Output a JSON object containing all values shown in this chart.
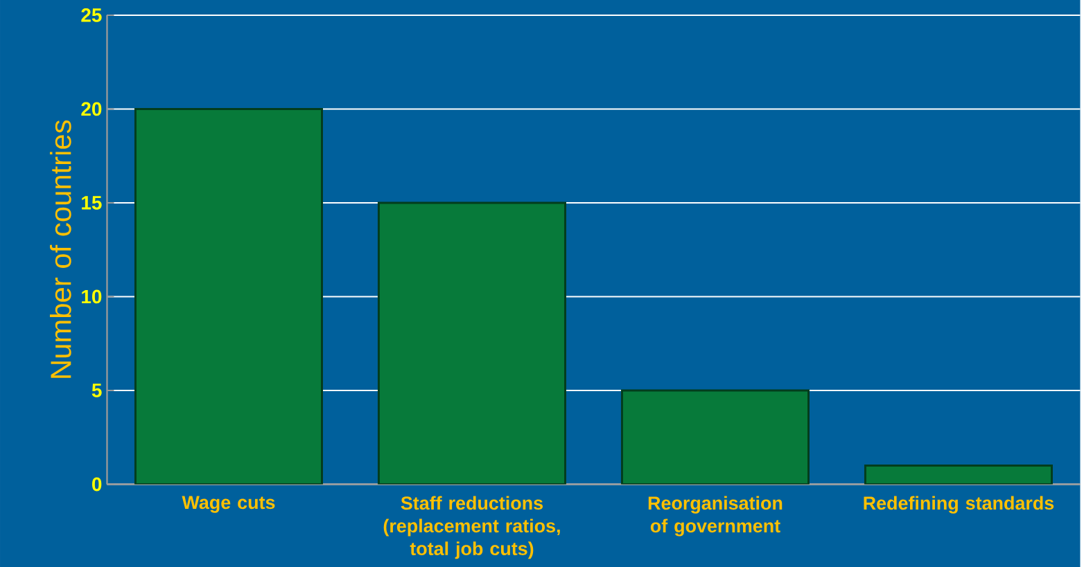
{
  "chart_data": {
    "type": "bar",
    "ylabel": "Number of countries",
    "categories": [
      "Wage cuts",
      "Staff reductions (replacement ratios, total job cuts)",
      "Reorganisation of government",
      "Redefining standards"
    ],
    "values": [
      20,
      15,
      5,
      1
    ],
    "color": "#077a3a",
    "ylim": [
      0,
      25
    ],
    "yticks": [
      0,
      5,
      10,
      15,
      20,
      25
    ],
    "grid": "y"
  }
}
